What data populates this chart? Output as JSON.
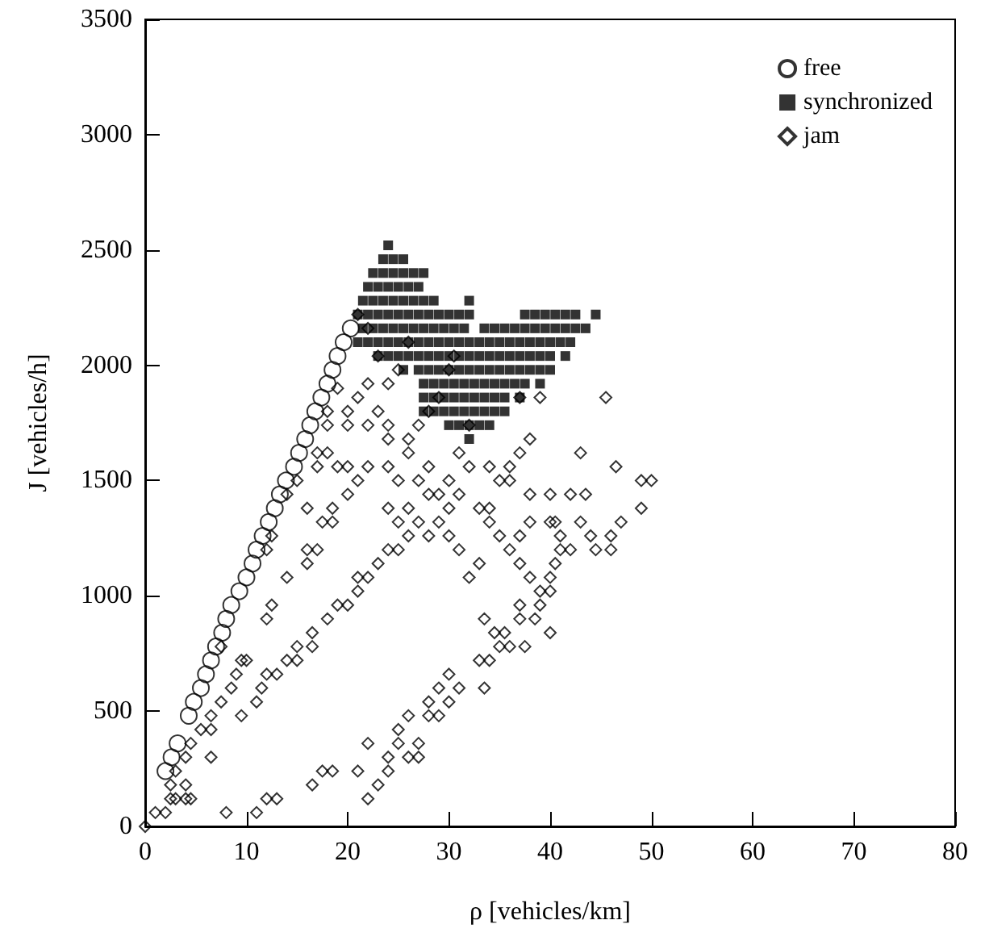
{
  "chart_data": {
    "type": "scatter",
    "xlabel": "ρ [vehicles/km]",
    "ylabel": "J [vehicles/h]",
    "xlim": [
      0,
      80
    ],
    "ylim": [
      0,
      3500
    ],
    "xticks": [
      0,
      10,
      20,
      30,
      40,
      50,
      60,
      70,
      80
    ],
    "yticks": [
      0,
      500,
      1000,
      1500,
      2000,
      2500,
      3000,
      3500
    ],
    "grid": false,
    "legend": "top right",
    "series": [
      {
        "name": "free",
        "color": "#000000",
        "marker": "circle",
        "x": [
          2,
          2.6,
          3.2,
          4.3,
          4.8,
          5.5,
          6,
          6.5,
          7,
          7.6,
          8,
          8.5,
          9.3,
          10,
          10.6,
          11,
          11.6,
          12.2,
          12.8,
          13.3,
          13.9,
          14.7,
          15.2,
          15.8,
          16.3,
          16.8,
          17.4,
          18,
          18.5,
          19,
          19.6,
          20.3
        ],
        "values": [
          240,
          300,
          360,
          480,
          540,
          600,
          660,
          720,
          780,
          840,
          900,
          960,
          1020,
          1080,
          1140,
          1200,
          1260,
          1320,
          1380,
          1440,
          1500,
          1560,
          1620,
          1680,
          1740,
          1800,
          1860,
          1920,
          1980,
          2040,
          2100,
          2160
        ]
      },
      {
        "name": "synchronized",
        "color": "#000000",
        "marker": "square",
        "x": [
          24,
          23.5,
          24.5,
          25.5,
          22.5,
          23.5,
          24.5,
          25.5,
          26.5,
          27.5,
          22,
          23,
          24,
          25,
          26,
          27,
          21.5,
          22.5,
          23.5,
          24.5,
          25.5,
          26.5,
          27.5,
          28.5,
          32,
          21,
          22,
          23,
          24,
          25,
          26,
          27,
          28,
          29,
          30,
          31,
          32,
          37.5,
          38.5,
          39.5,
          40.5,
          41.5,
          42.5,
          44.5,
          21.5,
          22.5,
          23.5,
          24.5,
          25.5,
          26.5,
          27.5,
          28.5,
          29.5,
          30.5,
          31.5,
          33.5,
          34.5,
          35.5,
          36.5,
          37.5,
          38.5,
          39.5,
          40.5,
          41.5,
          42.5,
          43.5,
          21,
          22,
          23,
          24,
          25,
          26,
          27,
          28,
          29,
          30,
          31,
          32,
          33,
          34,
          35,
          36,
          37,
          38,
          39,
          40,
          41,
          42,
          23,
          24,
          25,
          26,
          27,
          28,
          29,
          30,
          31,
          32,
          33,
          34,
          35,
          36,
          37,
          38,
          39,
          40,
          41.5,
          25.5,
          27,
          28,
          29,
          30,
          31,
          32,
          33,
          34,
          35,
          36,
          37,
          38,
          39,
          40,
          27.5,
          28.5,
          29.5,
          30.5,
          31.5,
          32.5,
          33.5,
          34.5,
          35.5,
          36.5,
          37.5,
          39,
          27.5,
          28.5,
          29.5,
          30.5,
          31.5,
          32.5,
          33.5,
          34.5,
          35.5,
          37,
          27.5,
          28.5,
          29.5,
          30.5,
          31.5,
          32.5,
          33.5,
          34.5,
          35.5,
          30,
          31,
          32,
          33,
          34,
          32
        ],
        "values": [
          2520,
          2460,
          2460,
          2460,
          2400,
          2400,
          2400,
          2400,
          2400,
          2400,
          2340,
          2340,
          2340,
          2340,
          2340,
          2340,
          2280,
          2280,
          2280,
          2280,
          2280,
          2280,
          2280,
          2280,
          2280,
          2220,
          2220,
          2220,
          2220,
          2220,
          2220,
          2220,
          2220,
          2220,
          2220,
          2220,
          2220,
          2220,
          2220,
          2220,
          2220,
          2220,
          2220,
          2220,
          2160,
          2160,
          2160,
          2160,
          2160,
          2160,
          2160,
          2160,
          2160,
          2160,
          2160,
          2160,
          2160,
          2160,
          2160,
          2160,
          2160,
          2160,
          2160,
          2160,
          2160,
          2160,
          2100,
          2100,
          2100,
          2100,
          2100,
          2100,
          2100,
          2100,
          2100,
          2100,
          2100,
          2100,
          2100,
          2100,
          2100,
          2100,
          2100,
          2100,
          2100,
          2100,
          2100,
          2100,
          2040,
          2040,
          2040,
          2040,
          2040,
          2040,
          2040,
          2040,
          2040,
          2040,
          2040,
          2040,
          2040,
          2040,
          2040,
          2040,
          2040,
          2040,
          2040,
          1980,
          1980,
          1980,
          1980,
          1980,
          1980,
          1980,
          1980,
          1980,
          1980,
          1980,
          1980,
          1980,
          1980,
          1980,
          1920,
          1920,
          1920,
          1920,
          1920,
          1920,
          1920,
          1920,
          1920,
          1920,
          1920,
          1920,
          1860,
          1860,
          1860,
          1860,
          1860,
          1860,
          1860,
          1860,
          1860,
          1860,
          1800,
          1800,
          1800,
          1800,
          1800,
          1800,
          1800,
          1800,
          1800,
          1740,
          1740,
          1740,
          1740,
          1740,
          1680
        ]
      },
      {
        "name": "jam",
        "color": "#000000",
        "marker": "diamond",
        "x": [
          0,
          1,
          2,
          2.5,
          3,
          4,
          4.5,
          2.5,
          4,
          3,
          4,
          4.5,
          5.5,
          6.5,
          6.5,
          7.5,
          6.5,
          9.5,
          8.5,
          9,
          9.5,
          10,
          7.5,
          11,
          11.5,
          12,
          13,
          12,
          12.5,
          14,
          15,
          15,
          16.5,
          16.5,
          18,
          19,
          20,
          21,
          21,
          22,
          23,
          14,
          16,
          17,
          12,
          12.5,
          14,
          16,
          17.5,
          18.5,
          18.5,
          8,
          11,
          12,
          13,
          16.5,
          17.5,
          18.5,
          21,
          22,
          22,
          23,
          24,
          24,
          25,
          25,
          26,
          26,
          27,
          27,
          28,
          28,
          29,
          29,
          30,
          31,
          30,
          33,
          33.5,
          34,
          33.5,
          34.5,
          35,
          35.5,
          36,
          37,
          37,
          37.5,
          38.5,
          39,
          39,
          40,
          40,
          40,
          40.5,
          41,
          42,
          41,
          40,
          40.5,
          42,
          43,
          43.5,
          44,
          44.5,
          46,
          46,
          47,
          49,
          49,
          50,
          46.5,
          45.5,
          43,
          39,
          37,
          38,
          37,
          36,
          38,
          40,
          38,
          37,
          36,
          37,
          38,
          35,
          34,
          35,
          34,
          32,
          31,
          30,
          30,
          31,
          32,
          33,
          29,
          28,
          27,
          26,
          25,
          24,
          24,
          24,
          22,
          21,
          20,
          20,
          19,
          18,
          17,
          17,
          15,
          16,
          22,
          23,
          24,
          24,
          26,
          26,
          27,
          28,
          29,
          23,
          25,
          26,
          30,
          30.5,
          24,
          22,
          21,
          20,
          20,
          21,
          22,
          19,
          18,
          18,
          25,
          27,
          28,
          29,
          30,
          31,
          25,
          26,
          28,
          32,
          33,
          34,
          36
        ],
        "values": [
          0,
          60,
          60,
          120,
          120,
          120,
          120,
          180,
          180,
          240,
          300,
          360,
          420,
          420,
          480,
          540,
          300,
          480,
          600,
          660,
          720,
          720,
          780,
          540,
          600,
          660,
          660,
          900,
          960,
          720,
          720,
          780,
          780,
          840,
          900,
          960,
          960,
          1020,
          1080,
          1080,
          1140,
          1080,
          1140,
          1200,
          1200,
          1260,
          1440,
          1200,
          1320,
          1380,
          1320,
          60,
          60,
          120,
          120,
          180,
          240,
          240,
          240,
          120,
          360,
          180,
          240,
          300,
          360,
          420,
          480,
          300,
          360,
          300,
          480,
          540,
          480,
          600,
          540,
          600,
          660,
          720,
          600,
          720,
          900,
          840,
          780,
          840,
          780,
          900,
          960,
          780,
          900,
          960,
          1020,
          1080,
          840,
          1020,
          1140,
          1200,
          1200,
          1260,
          1320,
          1320,
          1440,
          1320,
          1440,
          1260,
          1200,
          1260,
          1200,
          1320,
          1380,
          1500,
          1500,
          1560,
          1860,
          1620,
          1860,
          1860,
          1680,
          1620,
          1560,
          1440,
          1440,
          1320,
          1260,
          1200,
          1140,
          1080,
          1260,
          1380,
          1500,
          1560,
          1560,
          1440,
          1380,
          1260,
          1200,
          1080,
          1140,
          1320,
          1260,
          1320,
          1380,
          1200,
          1200,
          1380,
          1560,
          1560,
          1500,
          1440,
          1560,
          1560,
          1620,
          1620,
          1560,
          1500,
          1380,
          1740,
          1800,
          1740,
          1680,
          1620,
          1680,
          1740,
          1800,
          1860,
          2040,
          1980,
          2100,
          1980,
          2040,
          1920,
          1920,
          1860,
          1800,
          1740,
          2220,
          2160,
          1900,
          1800,
          1740,
          1500,
          1500,
          1560,
          1440,
          1500,
          1620,
          1320,
          1260,
          1440,
          1740,
          1380,
          1320,
          1500
        ]
      }
    ]
  }
}
